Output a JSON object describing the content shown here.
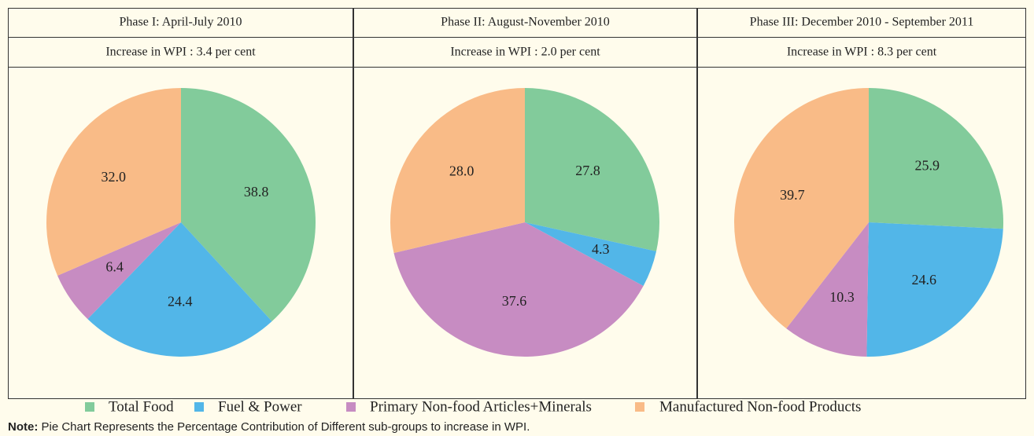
{
  "chart_data": [
    {
      "type": "pie",
      "title": "Phase I: April-July 2010",
      "subtitle": "Increase in WPI : 3.4 per cent",
      "values": [
        38.8,
        24.4,
        6.4,
        32.0
      ],
      "value_labels": [
        "38.8",
        "24.4",
        "6.4",
        "32.0"
      ]
    },
    {
      "type": "pie",
      "title": "Phase II: August-November 2010",
      "subtitle": "Increase in WPI : 2.0 per cent",
      "values": [
        27.8,
        4.3,
        37.6,
        28.0
      ],
      "value_labels": [
        "27.8",
        "4.3",
        "37.6",
        "28.0"
      ]
    },
    {
      "type": "pie",
      "title": "Phase III: December 2010 - September 2011",
      "subtitle": "Increase in WPI : 8.3 per cent",
      "values": [
        25.9,
        24.6,
        10.3,
        39.7
      ],
      "value_labels": [
        "25.9",
        "24.6",
        "10.3",
        "39.7"
      ]
    }
  ],
  "legend": {
    "categories": [
      "Total Food",
      "Fuel & Power",
      "Primary Non-food Articles+Minerals",
      "Manufactured Non-food Products"
    ],
    "colors": [
      "#82cb9b",
      "#52b6e8",
      "#c78cc2",
      "#f9bb87"
    ]
  },
  "note": {
    "label": "Note:",
    "text": "Pie Chart Represents the Percentage Contribution of Different sub-groups to increase in WPI."
  }
}
